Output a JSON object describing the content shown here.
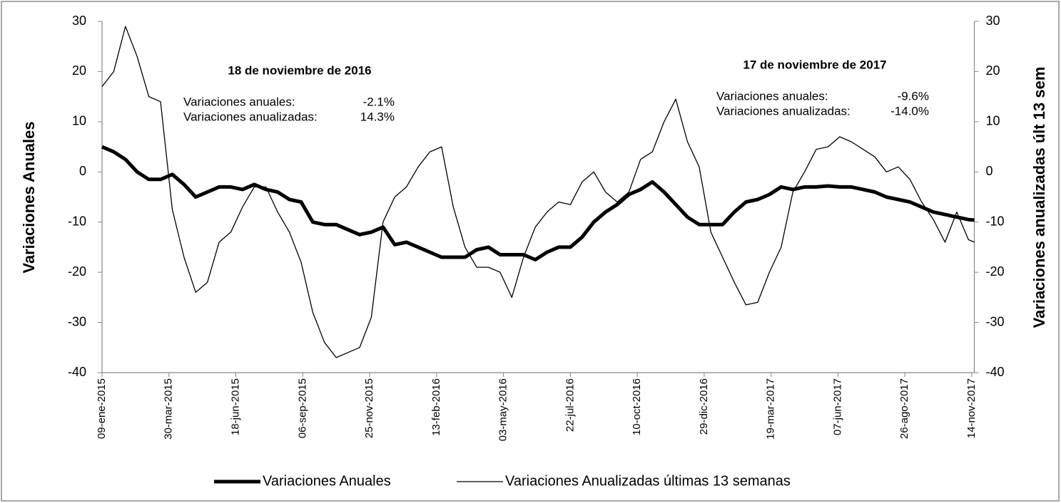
{
  "chart_data": {
    "type": "line",
    "y_label": "Variaciones Anuales",
    "y2_label": "Variaciones anualizadas últ 13 sem",
    "x": [
      "2015-01-09",
      "2015-01-23",
      "2015-02-06",
      "2015-02-20",
      "2015-03-06",
      "2015-03-20",
      "2015-04-03",
      "2015-04-17",
      "2015-05-01",
      "2015-05-15",
      "2015-05-29",
      "2015-06-12",
      "2015-06-26",
      "2015-07-10",
      "2015-07-24",
      "2015-08-07",
      "2015-08-21",
      "2015-09-04",
      "2015-09-18",
      "2015-10-02",
      "2015-10-16",
      "2015-10-30",
      "2015-11-13",
      "2015-11-27",
      "2015-12-11",
      "2015-12-25",
      "2016-01-08",
      "2016-01-22",
      "2016-02-05",
      "2016-02-19",
      "2016-03-04",
      "2016-03-18",
      "2016-04-01",
      "2016-04-15",
      "2016-04-29",
      "2016-05-13",
      "2016-05-27",
      "2016-06-10",
      "2016-06-24",
      "2016-07-08",
      "2016-07-22",
      "2016-08-05",
      "2016-08-19",
      "2016-09-02",
      "2016-09-16",
      "2016-09-30",
      "2016-10-14",
      "2016-10-28",
      "2016-11-11",
      "2016-11-25",
      "2016-12-09",
      "2016-12-23",
      "2017-01-06",
      "2017-01-20",
      "2017-02-03",
      "2017-02-17",
      "2017-03-03",
      "2017-03-17",
      "2017-03-31",
      "2017-04-14",
      "2017-04-28",
      "2017-05-12",
      "2017-05-26",
      "2017-06-09",
      "2017-06-23",
      "2017-07-07",
      "2017-07-21",
      "2017-08-04",
      "2017-08-18",
      "2017-09-01",
      "2017-09-15",
      "2017-09-29",
      "2017-10-13",
      "2017-10-27",
      "2017-11-10",
      "2017-11-17"
    ],
    "series": [
      {
        "name": "Variaciones Anuales",
        "color": "#000000",
        "width": 5,
        "values": [
          5,
          4,
          2.5,
          0,
          -1.5,
          -1.5,
          -0.5,
          -2.5,
          -5,
          -4,
          -3,
          -3,
          -3.5,
          -2.5,
          -3.5,
          -4,
          -5.5,
          -6,
          -10,
          -10.5,
          -10.5,
          -11.5,
          -12.5,
          -12,
          -11,
          -14.5,
          -14,
          -15,
          -16,
          -17,
          -17,
          -17,
          -15.5,
          -15,
          -16.5,
          -16.5,
          -16.5,
          -17.5,
          -16,
          -15,
          -15,
          -13,
          -10,
          -8,
          -6.5,
          -4.5,
          -3.5,
          -2,
          -4,
          -6.5,
          -9,
          -10.5,
          -10.5,
          -10.5,
          -8,
          -6,
          -5.5,
          -4.5,
          -3,
          -3.5,
          -3,
          -3,
          -2.8,
          -3,
          -3,
          -3.5,
          -4,
          -5,
          -5.5,
          -6,
          -7,
          -8,
          -8.5,
          -9,
          -9.5,
          -9.6
        ]
      },
      {
        "name": "Variaciones Anualizadas últimas 13 semanas",
        "color": "#000000",
        "width": 1.3,
        "axis": "y2",
        "values": [
          17,
          20,
          29,
          23,
          15,
          14,
          -7.5,
          -17,
          -24,
          -22,
          -14,
          -12,
          -7,
          -3,
          -3,
          -8,
          -12,
          -18,
          -28,
          -34,
          -37,
          -36,
          -35,
          -29,
          -10,
          -5,
          -3,
          1,
          4,
          5,
          -7,
          -15,
          -19,
          -19,
          -20,
          -25,
          -17,
          -11,
          -8,
          -6,
          -6.5,
          -2,
          0,
          -4,
          -6,
          -4,
          2.5,
          4,
          10,
          14.5,
          6,
          1,
          -12,
          -17,
          -22,
          -26.5,
          -26,
          -20,
          -15,
          -4,
          0,
          4.5,
          5,
          7,
          6,
          4.5,
          3,
          0,
          1,
          -1.5,
          -6,
          -9.5,
          -14,
          -8,
          -13.5,
          -14
        ]
      }
    ],
    "xlim": [
      "2015-01-09",
      "2017-11-17"
    ],
    "xticks": [
      {
        "value": "2015-01-09",
        "label": "09-ene-2015"
      },
      {
        "value": "2015-03-30",
        "label": "30-mar-2015"
      },
      {
        "value": "2015-06-18",
        "label": "18-jun-2015"
      },
      {
        "value": "2015-09-06",
        "label": "06-sep-2015"
      },
      {
        "value": "2015-11-25",
        "label": "25-nov-2015"
      },
      {
        "value": "2016-02-13",
        "label": "13-feb-2016"
      },
      {
        "value": "2016-05-03",
        "label": "03-may-2016"
      },
      {
        "value": "2016-07-22",
        "label": "22-jul-2016"
      },
      {
        "value": "2016-10-10",
        "label": "10-oct-2016"
      },
      {
        "value": "2016-12-29",
        "label": "29-dic-2016"
      },
      {
        "value": "2017-03-19",
        "label": "19-mar-2017"
      },
      {
        "value": "2017-06-07",
        "label": "07-jun-2017"
      },
      {
        "value": "2017-08-26",
        "label": "26-ago-2017"
      },
      {
        "value": "2017-11-14",
        "label": "14-nov-2017"
      }
    ],
    "ylim": [
      -40,
      30
    ],
    "yticks": [
      -40,
      -30,
      -20,
      -10,
      0,
      10,
      20,
      30
    ],
    "y2lim": [
      -40,
      30
    ],
    "y2ticks": [
      -40,
      -30,
      -20,
      -10,
      0,
      10,
      20,
      30
    ],
    "legend": "bottom",
    "annotations": [
      {
        "title": "18 de noviembre de 2016",
        "lines": [
          [
            "Variaciones anuales:",
            "-2.1%"
          ],
          [
            "Variaciones anualizadas:",
            "14.3%"
          ]
        ]
      },
      {
        "title": "17 de noviembre de 2017",
        "lines": [
          [
            "Variaciones anuales:",
            "-9.6%"
          ],
          [
            "Variaciones anualizadas:",
            "-14.0%"
          ]
        ]
      }
    ]
  }
}
